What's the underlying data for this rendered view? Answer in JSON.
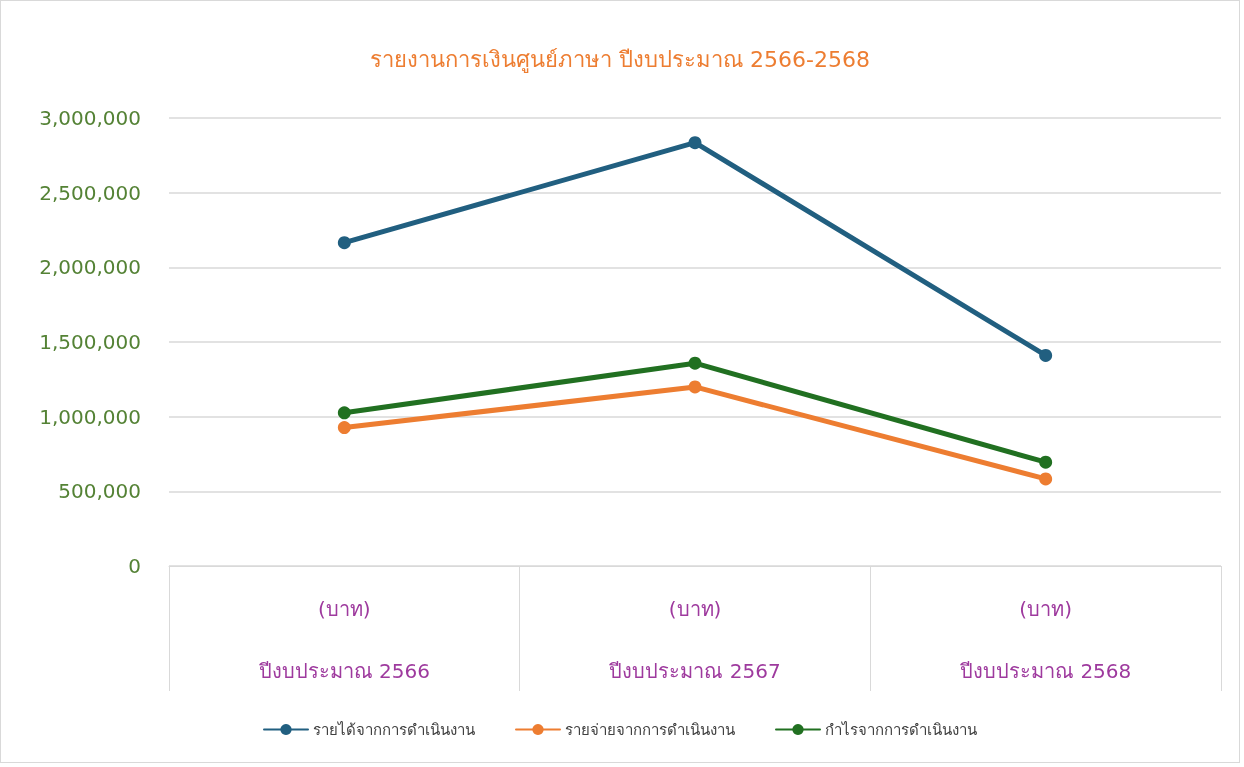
{
  "chart_data": {
    "type": "line",
    "title": "รายงานการเงินศูนย์ภาษา ปีงบประมาณ 2566-2568",
    "categories": [
      "(บาท)\nปีงบประมาณ 2566",
      "(บาท)\nปีงบประมาณ 2567",
      "(บาท)\nปีงบประมาณ 2568"
    ],
    "series": [
      {
        "name": "รายได้จากการดำเนินงาน",
        "color": "#215f80",
        "values": [
          2165000,
          2835000,
          1410000
        ]
      },
      {
        "name": "รายจ่ายจากการดำเนินงาน",
        "color": "#ed7d31",
        "values": [
          927000,
          1199000,
          583000
        ]
      },
      {
        "name": "กำไรจากการดำเนินงาน",
        "color": "#217021",
        "values": [
          1026000,
          1358000,
          695000
        ]
      }
    ],
    "ylim": [
      0,
      3000000
    ],
    "yticks": [
      0,
      {
        "value": 500000,
        "label": "500,000"
      },
      {
        "value": 1000000,
        "label": "1,000,000"
      },
      {
        "value": 1500000,
        "label": "1,500,000"
      },
      {
        "value": 2000000,
        "label": "2,000,000"
      },
      {
        "value": 2500000,
        "label": "2,500,000"
      },
      {
        "value": 3000000,
        "label": "3,000,000"
      }
    ],
    "grid": "y",
    "legend": "bottom",
    "marker": "circle",
    "line_style": "solid"
  }
}
